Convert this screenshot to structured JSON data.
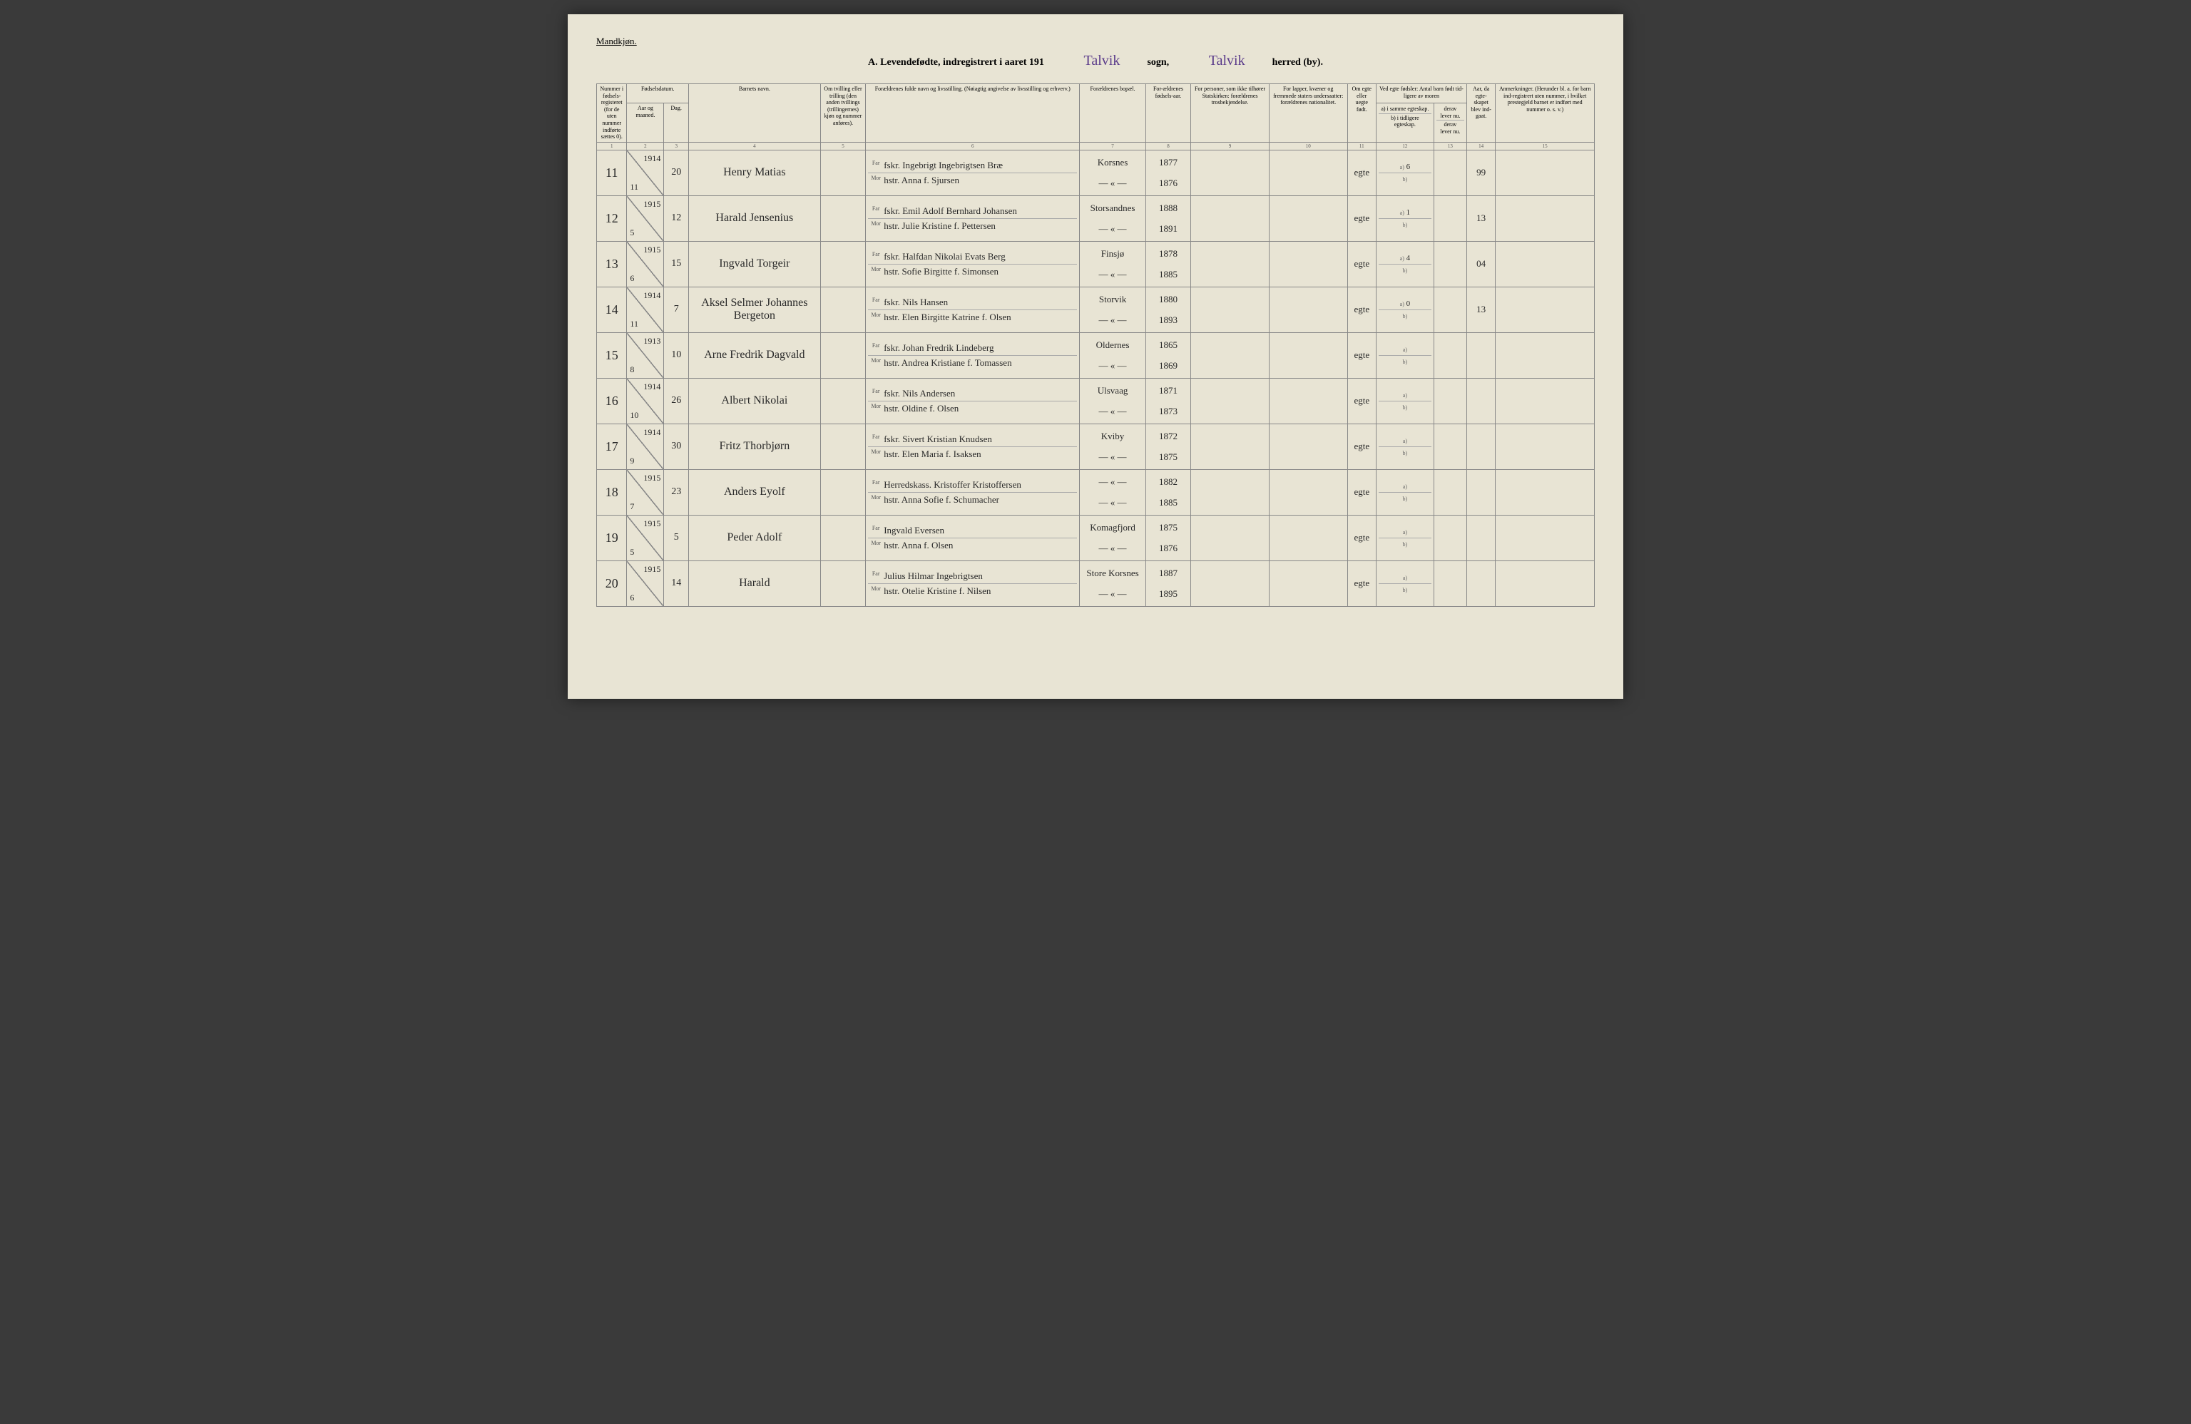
{
  "gender_label": "Mandkjøn.",
  "title": {
    "prefix": "A.  Levendefødte, indregistrert i aaret 191",
    "year_suffix": "",
    "sogn_handwritten": "Talvik",
    "sogn_label": "sogn,",
    "herred_handwritten": "Talvik",
    "herred_label": "herred (by)."
  },
  "headers": {
    "c1": "Nummer i fødsels-registeret (for de uten nummer indførte sættes 0).",
    "c2_top": "Fødselsdatum.",
    "c2a": "Aar og maaned.",
    "c2b": "Dag.",
    "c4": "Barnets navn.",
    "c5": "Om tvilling eller trilling (den anden tvillings (trillingernes) kjøn og nummer anføres).",
    "c6": "Forældrenes fulde navn og livsstilling. (Nøiagtig angivelse av livsstilling og erhverv.)",
    "c7": "Forældrenes bopæl.",
    "c8": "For-ældrenes fødsels-aar.",
    "c9": "For personer, som ikke tilhører Statskirken: forældrenes trosbekjendelse.",
    "c10": "For lapper, kvæner og fremmede staters undersaatter: forældrenes nationalitet.",
    "c11": "Om egte eller uegte født.",
    "c12_top": "Ved egte fødsler: Antal barn født tid-ligere av moren",
    "c12a": "a) i samme egteskap.",
    "c12b": "b) i tidligere egteskap.",
    "c13a": "derav lever nu.",
    "c13b": "derav lever nu.",
    "c14": "Aar, da egte-skapet blev ind-gaat.",
    "c15": "Anmerkninger. (Herunder bl. a. for barn ind-registrert uten nummer, i hvilket prestegjeld barnet er indført med nummer o. s. v.)"
  },
  "colnums": [
    "1",
    "2",
    "3",
    "4",
    "5",
    "6",
    "7",
    "8",
    "9",
    "10",
    "11",
    "12",
    "13",
    "14",
    "15"
  ],
  "far_label": "Far",
  "mor_label": "Mor",
  "a_label": "a)",
  "b_label": "b)",
  "rows": [
    {
      "num": "11",
      "yr": "1914",
      "mon": "11",
      "day": "20",
      "name": "Henry Matias",
      "far": "fskr. Ingebrigt Ingebrigtsen Bræ",
      "mor": "hstr. Anna f. Sjursen",
      "res": "Korsnes",
      "res2": "— « —",
      "fy": "1877",
      "my": "1876",
      "egte": "egte",
      "a": "6",
      "b": "",
      "aar": "99"
    },
    {
      "num": "12",
      "yr": "1915",
      "mon": "5",
      "day": "12",
      "name": "Harald Jensenius",
      "far": "fskr. Emil Adolf Bernhard Johansen",
      "mor": "hstr. Julie Kristine f. Pettersen",
      "res": "Storsandnes",
      "res2": "— « —",
      "fy": "1888",
      "my": "1891",
      "egte": "egte",
      "a": "1",
      "b": "",
      "aar": "13"
    },
    {
      "num": "13",
      "yr": "1915",
      "mon": "6",
      "day": "15",
      "name": "Ingvald Torgeir",
      "far": "fskr. Halfdan Nikolai Evats Berg",
      "mor": "hstr. Sofie Birgitte f. Simonsen",
      "res": "Finsjø",
      "res2": "— « —",
      "fy": "1878",
      "my": "1885",
      "egte": "egte",
      "a": "4",
      "b": "",
      "aar": "04"
    },
    {
      "num": "14",
      "yr": "1914",
      "mon": "11",
      "day": "7",
      "name": "Aksel Selmer Johannes Bergeton",
      "far": "fskr. Nils Hansen",
      "mor": "hstr. Elen Birgitte Katrine f. Olsen",
      "res": "Storvik",
      "res2": "— « —",
      "fy": "1880",
      "my": "1893",
      "egte": "egte",
      "a": "0",
      "b": "",
      "aar": "13"
    },
    {
      "num": "15",
      "yr": "1913",
      "mon": "8",
      "day": "10",
      "name": "Arne Fredrik Dagvald",
      "far": "fskr. Johan Fredrik Lindeberg",
      "mor": "hstr. Andrea Kristiane f. Tomassen",
      "res": "Oldernes",
      "res2": "— « —",
      "fy": "1865",
      "my": "1869",
      "egte": "egte",
      "a": "",
      "b": "",
      "aar": ""
    },
    {
      "num": "16",
      "yr": "1914",
      "mon": "10",
      "day": "26",
      "name": "Albert Nikolai",
      "far": "fskr. Nils Andersen",
      "mor": "hstr. Oldine f. Olsen",
      "res": "Ulsvaag",
      "res2": "— « —",
      "fy": "1871",
      "my": "1873",
      "egte": "egte",
      "a": "",
      "b": "",
      "aar": ""
    },
    {
      "num": "17",
      "yr": "1914",
      "mon": "9",
      "day": "30",
      "name": "Fritz Thorbjørn",
      "far": "fskr. Sivert Kristian Knudsen",
      "mor": "hstr. Elen Maria f. Isaksen",
      "res": "Kviby",
      "res2": "— « —",
      "fy": "1872",
      "my": "1875",
      "egte": "egte",
      "a": "",
      "b": "",
      "aar": ""
    },
    {
      "num": "18",
      "yr": "1915",
      "mon": "7",
      "day": "23",
      "name": "Anders Eyolf",
      "far": "Herredskass. Kristoffer Kristoffersen",
      "mor": "hstr. Anna Sofie f. Schumacher",
      "res": "— « —",
      "res2": "— « —",
      "fy": "1882",
      "my": "1885",
      "egte": "egte",
      "a": "",
      "b": "",
      "aar": ""
    },
    {
      "num": "19",
      "yr": "1915",
      "mon": "5",
      "day": "5",
      "name": "Peder Adolf",
      "far": "Ingvald Eversen",
      "mor": "hstr. Anna f. Olsen",
      "res": "Komagfjord",
      "res2": "— « —",
      "fy": "1875",
      "my": "1876",
      "egte": "egte",
      "a": "",
      "b": "",
      "aar": ""
    },
    {
      "num": "20",
      "yr": "1915",
      "mon": "6",
      "day": "14",
      "name": "Harald",
      "far": "Julius Hilmar Ingebrigtsen",
      "mor": "hstr. Otelie Kristine f. Nilsen",
      "res": "Store Korsnes",
      "res2": "— « —",
      "fy": "1887",
      "my": "1895",
      "egte": "egte",
      "a": "",
      "b": "",
      "aar": ""
    }
  ]
}
